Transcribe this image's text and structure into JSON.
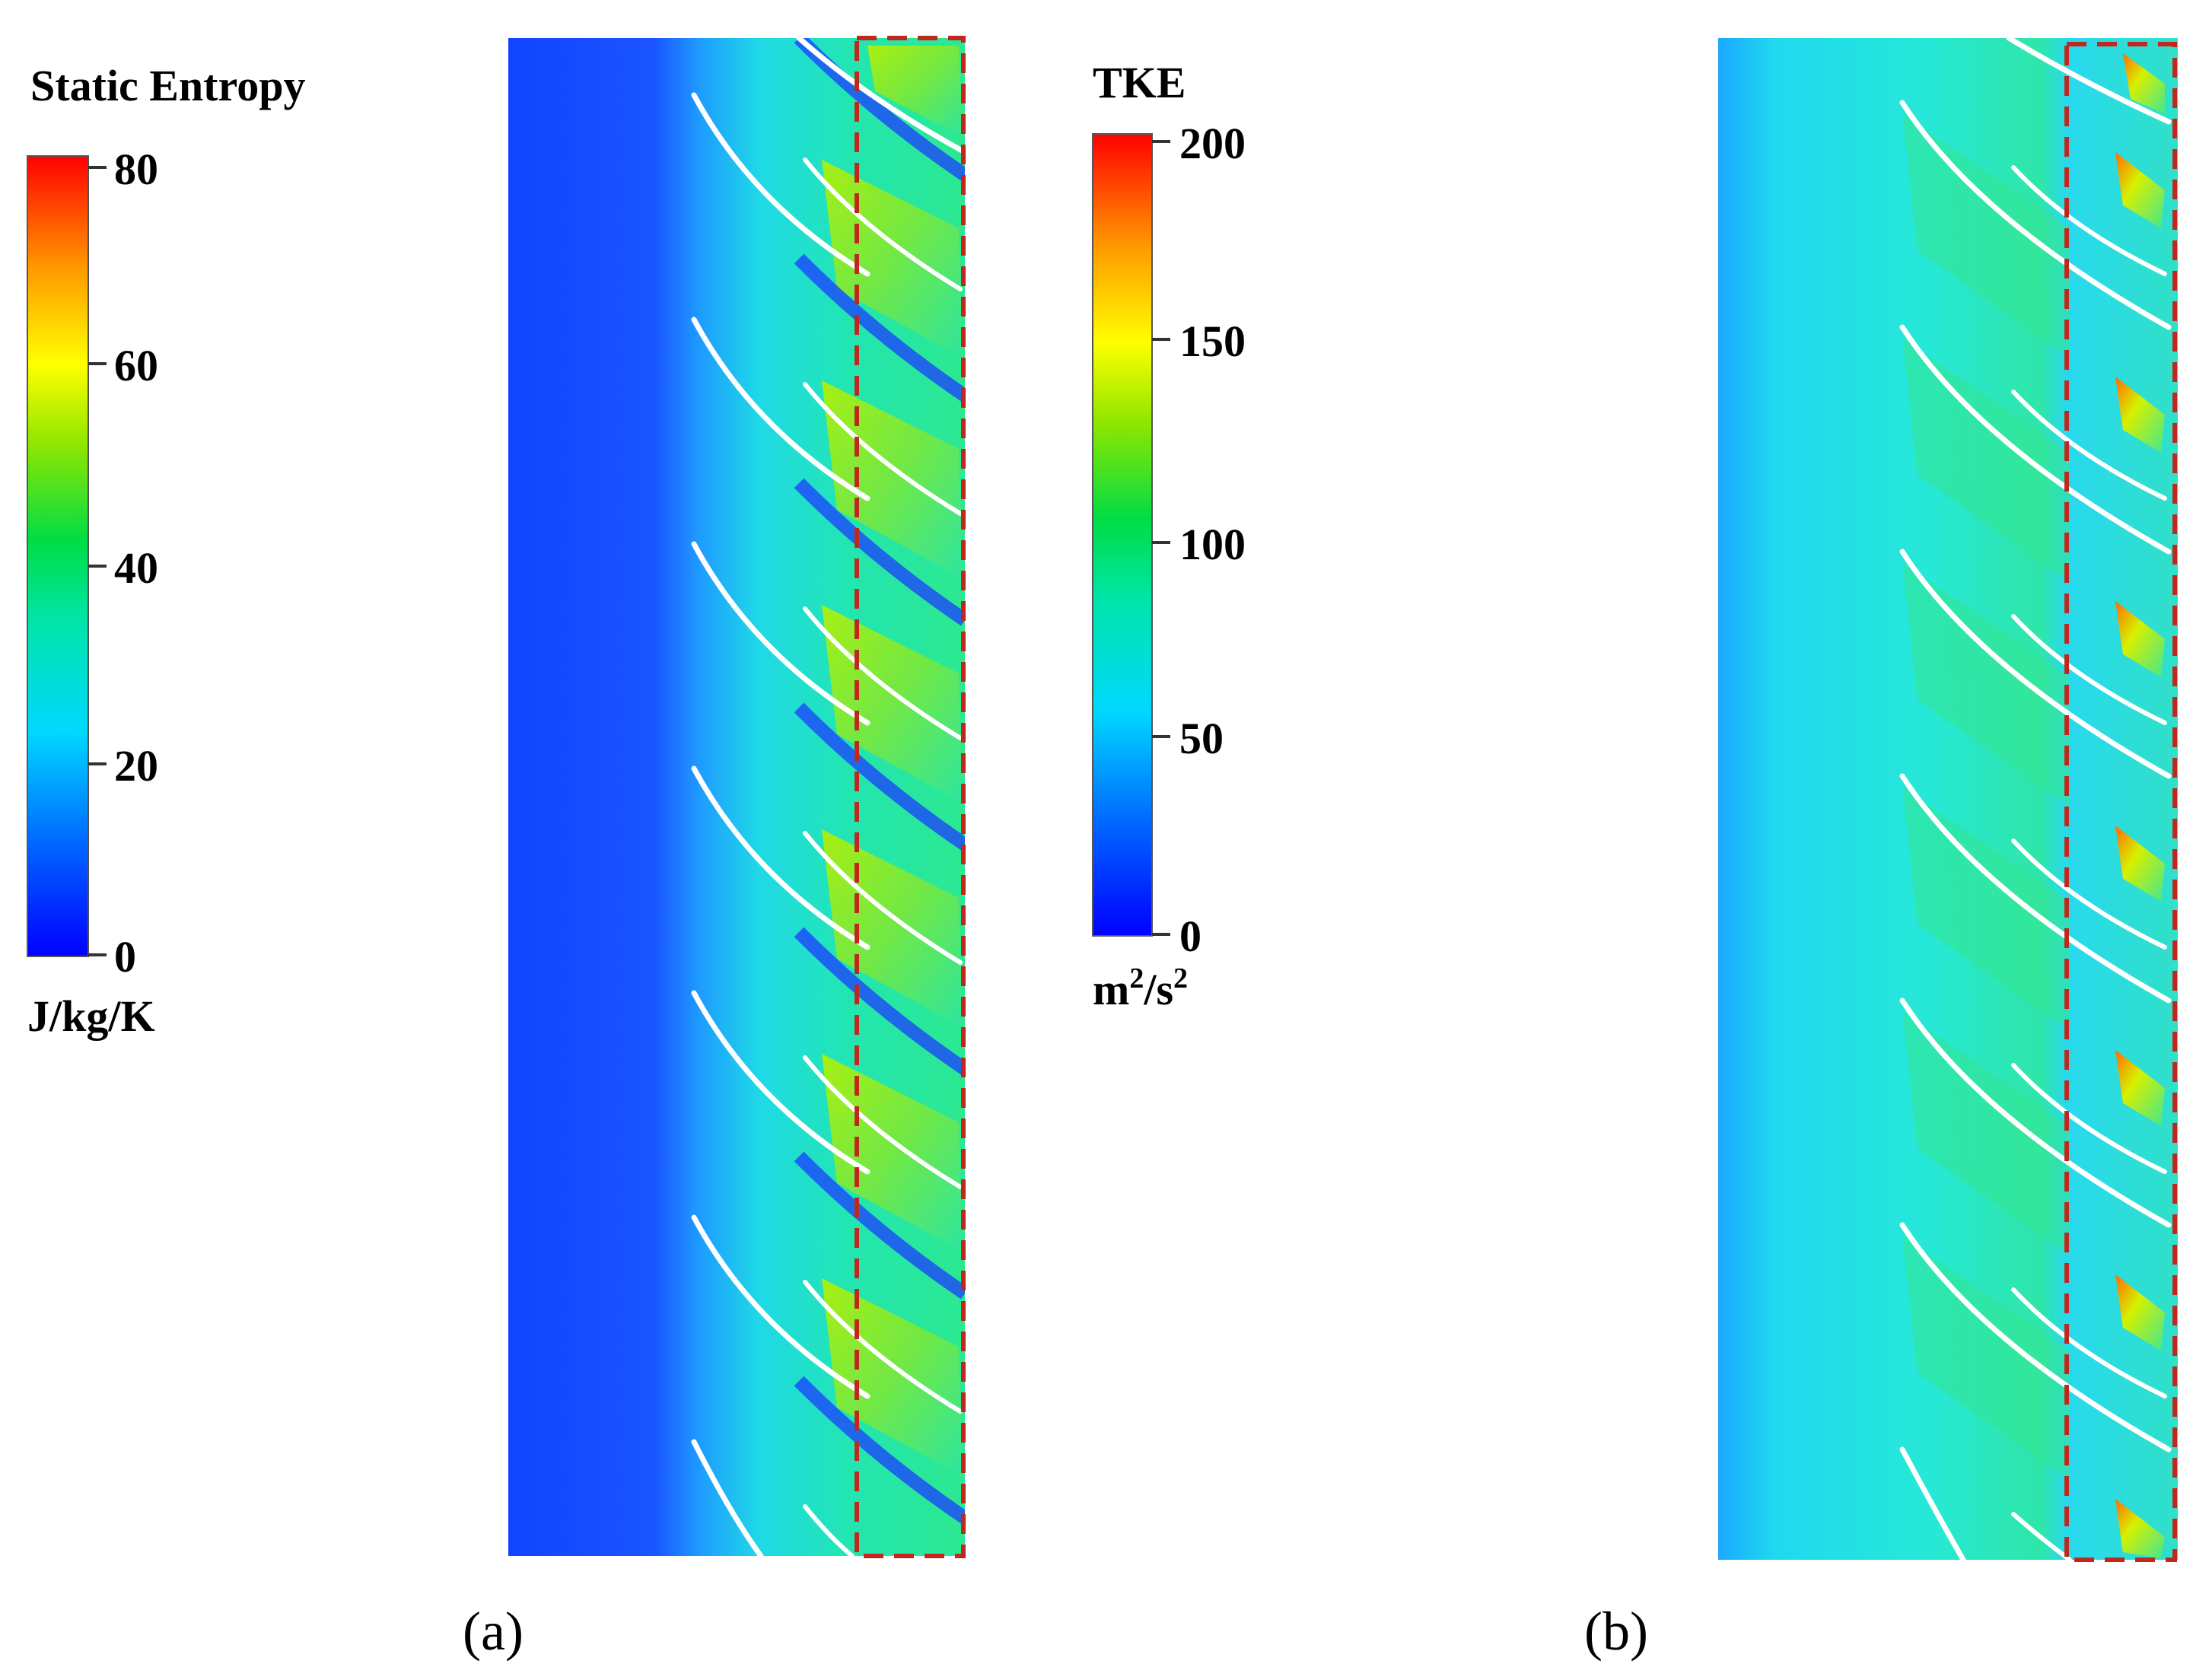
{
  "panel_a": {
    "label": "(a)",
    "legend": {
      "title": "Static Entropy",
      "unit": "J/kg/K",
      "min": 0,
      "max": 80,
      "ticks": [
        "80",
        "60",
        "40",
        "20",
        "0"
      ]
    }
  },
  "panel_b": {
    "label": "(b)",
    "legend": {
      "title": "TKE",
      "unit_base": "m",
      "unit_exp1": "2",
      "unit_mid": "/s",
      "unit_exp2": "2",
      "min": 0,
      "max": 200,
      "ticks": [
        "200",
        "150",
        "100",
        "50",
        "0"
      ]
    }
  },
  "colors": {
    "colormap": [
      "#0000ff",
      "#0066ff",
      "#00e5ff",
      "#00e676",
      "#7cfc00",
      "#ffff00",
      "#ff8c00",
      "#ff0000"
    ],
    "highlight_box": "#c0281e",
    "blade": "#ffffff"
  }
}
